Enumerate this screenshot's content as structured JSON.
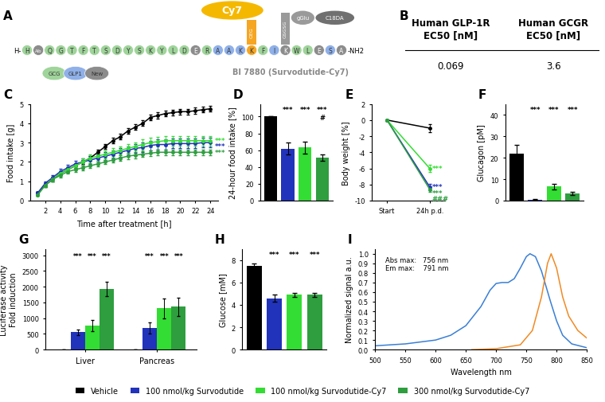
{
  "diagram": {
    "panel": "A",
    "title": "BI 7880 (Survodutide-Cy7)",
    "n_terminus": "H-",
    "c_terminus": "-NH2",
    "groups": [
      {
        "name": "GCG",
        "color": "#9fd49a"
      },
      {
        "name": "GLP1",
        "color": "#8fb0e8"
      },
      {
        "name": "New",
        "color": "#8c8c8c"
      }
    ],
    "residues": [
      {
        "label": "H",
        "group": "GCG"
      },
      {
        "label": "Aib",
        "group": "New"
      },
      {
        "label": "Q",
        "group": "GCG"
      },
      {
        "label": "G",
        "group": "GCG"
      },
      {
        "label": "T",
        "group": "GCG"
      },
      {
        "label": "F",
        "group": "GCG"
      },
      {
        "label": "T",
        "group": "GCG"
      },
      {
        "label": "S",
        "group": "GCG"
      },
      {
        "label": "D",
        "group": "GCG"
      },
      {
        "label": "Y",
        "group": "GCG"
      },
      {
        "label": "S",
        "group": "GCG"
      },
      {
        "label": "K",
        "group": "GCG"
      },
      {
        "label": "Y",
        "group": "GCG"
      },
      {
        "label": "L",
        "group": "GCG"
      },
      {
        "label": "D",
        "group": "GCG"
      },
      {
        "label": "E",
        "group": "New"
      },
      {
        "label": "R",
        "group": "GCG"
      },
      {
        "label": "A",
        "group": "GLP1"
      },
      {
        "label": "A",
        "group": "GLP1"
      },
      {
        "label": "K",
        "group": "GLP1"
      },
      {
        "label": "K",
        "color": "#f5a623",
        "side_chain": {
          "linker": {
            "label": "OEG",
            "color": "#f5a623"
          },
          "payload": [
            {
              "label": "Cy7",
              "color": "#f5b800"
            }
          ]
        }
      },
      {
        "label": "F",
        "group": "GCG"
      },
      {
        "label": "I",
        "group": "GLP1"
      },
      {
        "label": "K",
        "group": "New",
        "side_chain": {
          "linker": {
            "label": "GSGSG",
            "color": "#9a9a9a"
          },
          "payload": [
            {
              "label": "gGlu",
              "color": "#9a9a9a"
            },
            {
              "label": "C18DA",
              "color": "#707070"
            }
          ]
        }
      },
      {
        "label": "W",
        "group": "GCG"
      },
      {
        "label": "L",
        "group": "GCG"
      },
      {
        "label": "E",
        "group": "New"
      },
      {
        "label": "S",
        "group": "GLP1"
      },
      {
        "label": "A",
        "group": "New"
      }
    ]
  },
  "table": {
    "panel": "B",
    "header": [
      "Human GLP-1R\nEC50 [nM]",
      "Human GCGR\nEC50 [nM]"
    ],
    "rows": [
      [
        "0.069",
        "3.6"
      ]
    ]
  },
  "chart_data": [
    {
      "type": "line",
      "panel": "C",
      "xlabel": "Time after treatment [h]",
      "ylabel": "Food intake [g]",
      "marker": "o",
      "legend": "lower center",
      "x": [
        1,
        2,
        3,
        4,
        5,
        6,
        7,
        8,
        9,
        10,
        11,
        12,
        13,
        14,
        15,
        16,
        17,
        18,
        19,
        20,
        21,
        22,
        23,
        24
      ],
      "xlim": [
        0,
        25
      ],
      "xticks": [
        2,
        4,
        6,
        8,
        10,
        12,
        14,
        16,
        18,
        20,
        22,
        24
      ],
      "ylim": [
        0,
        5
      ],
      "yticks": [
        0,
        1,
        2,
        3,
        4,
        5
      ],
      "series": [
        {
          "name": "Vehicle",
          "color": "#000000",
          "values": [
            0.4,
            0.8,
            1.1,
            1.4,
            1.6,
            1.8,
            2.0,
            2.2,
            2.5,
            2.8,
            3.1,
            3.3,
            3.6,
            3.8,
            4.0,
            4.3,
            4.4,
            4.5,
            4.55,
            4.6,
            4.6,
            4.65,
            4.7,
            4.75
          ],
          "errors": [
            0.05,
            0.08,
            0.1,
            0.1,
            0.1,
            0.1,
            0.1,
            0.12,
            0.12,
            0.12,
            0.15,
            0.15,
            0.15,
            0.15,
            0.15,
            0.15,
            0.15,
            0.15,
            0.15,
            0.15,
            0.15,
            0.15,
            0.15,
            0.15
          ]
        },
        {
          "name": "100 nmol/kg Survodutide",
          "color": "#2233bb",
          "marks": [
            "***"
          ],
          "values": [
            0.4,
            0.9,
            1.2,
            1.5,
            1.7,
            1.9,
            2.0,
            2.1,
            2.2,
            2.3,
            2.4,
            2.5,
            2.6,
            2.7,
            2.75,
            2.85,
            2.9,
            2.9,
            2.95,
            2.95,
            2.95,
            2.95,
            3.0,
            3.0
          ],
          "errors": [
            0.05,
            0.1,
            0.12,
            0.15,
            0.15,
            0.15,
            0.2,
            0.2,
            0.2,
            0.2,
            0.2,
            0.22,
            0.22,
            0.22,
            0.25,
            0.25,
            0.25,
            0.25,
            0.25,
            0.25,
            0.25,
            0.25,
            0.25,
            0.25
          ]
        },
        {
          "name": "100 nmol/kg Survodutide-Cy7",
          "color": "#33dd33",
          "marks": [
            "***"
          ],
          "values": [
            0.3,
            0.8,
            1.1,
            1.4,
            1.6,
            1.8,
            2.0,
            2.2,
            2.3,
            2.4,
            2.5,
            2.6,
            2.7,
            2.8,
            2.9,
            3.0,
            3.05,
            3.1,
            3.1,
            3.1,
            3.1,
            3.1,
            3.1,
            3.1
          ],
          "errors": [
            0.05,
            0.1,
            0.12,
            0.15,
            0.15,
            0.15,
            0.2,
            0.2,
            0.2,
            0.2,
            0.2,
            0.22,
            0.22,
            0.22,
            0.25,
            0.25,
            0.25,
            0.25,
            0.25,
            0.25,
            0.25,
            0.25,
            0.25,
            0.25
          ]
        },
        {
          "name": "300 nmol/kg Survodutide-Cy7",
          "color": "#2e9e3f",
          "marks": [
            "***"
          ],
          "values": [
            0.3,
            0.8,
            1.1,
            1.3,
            1.5,
            1.6,
            1.7,
            1.8,
            1.9,
            2.0,
            2.1,
            2.2,
            2.3,
            2.35,
            2.4,
            2.45,
            2.5,
            2.5,
            2.5,
            2.5,
            2.5,
            2.5,
            2.5,
            2.5
          ],
          "errors": [
            0.05,
            0.08,
            0.1,
            0.1,
            0.1,
            0.1,
            0.12,
            0.12,
            0.12,
            0.12,
            0.12,
            0.15,
            0.15,
            0.15,
            0.15,
            0.15,
            0.15,
            0.15,
            0.15,
            0.15,
            0.15,
            0.15,
            0.15,
            0.15
          ]
        }
      ]
    },
    {
      "type": "bar",
      "panel": "D",
      "ylabel": "24-hour food intake [%]",
      "categories": [
        null,
        null,
        null,
        null
      ],
      "values": [
        100,
        62,
        63,
        51
      ],
      "errors": [
        0,
        7,
        7,
        4
      ],
      "colors": [
        "#000000",
        "#2233bb",
        "#33dd33",
        "#2e9e3f"
      ],
      "marks": [
        null,
        [
          "***"
        ],
        [
          "***"
        ],
        [
          "***",
          "#"
        ]
      ],
      "ylim": [
        0,
        115
      ],
      "yticks": [
        0,
        20,
        40,
        60,
        80,
        100
      ]
    },
    {
      "type": "line",
      "panel": "E",
      "ylabel": "Body weight [%]",
      "marker": "o",
      "categories": [
        "Start",
        "24h p.d."
      ],
      "ylim": [
        -10,
        2
      ],
      "yticks": [
        -10,
        -8,
        -6,
        -4,
        -2,
        0,
        2
      ],
      "series": [
        {
          "color": "#000000",
          "values": [
            0,
            -1.0
          ],
          "errors": [
            0,
            0.5
          ]
        },
        {
          "color": "#2233bb",
          "values": [
            0,
            -8.3
          ],
          "errors": [
            0,
            0.4
          ],
          "marks": [
            "***"
          ]
        },
        {
          "color": "#33dd33",
          "values": [
            0,
            -6.0
          ],
          "errors": [
            0,
            0.4
          ],
          "marks": [
            "***"
          ]
        },
        {
          "color": "#2e9e3f",
          "values": [
            0,
            -8.6
          ],
          "errors": [
            0,
            0.3
          ],
          "marks": [
            "***",
            "###"
          ]
        }
      ]
    },
    {
      "type": "bar",
      "panel": "F",
      "ylabel": "Glucagon [pM]",
      "categories": [
        null,
        null,
        null,
        null
      ],
      "values": [
        22,
        0.5,
        6.5,
        3.3
      ],
      "errors": [
        4,
        0.2,
        1.2,
        0.6
      ],
      "colors": [
        "#000000",
        "#2233bb",
        "#33dd33",
        "#2e9e3f"
      ],
      "marks": [
        null,
        [
          "***"
        ],
        [
          "***"
        ],
        [
          "***"
        ]
      ],
      "ylim": [
        0,
        45
      ],
      "yticks": [
        0,
        10,
        20,
        30,
        40
      ]
    },
    {
      "type": "bar",
      "panel": "G",
      "ylabel": "Luciferase activity\nFold induction",
      "categories": [
        "Liver",
        "Pancreas"
      ],
      "ylim": [
        0,
        3200
      ],
      "yticks": [
        0,
        500,
        1000,
        1500,
        2000,
        2500,
        3000
      ],
      "series": [
        {
          "color": "#000000",
          "values": [
            1,
            1
          ],
          "errors": [
            0,
            0
          ]
        },
        {
          "color": "#2233bb",
          "values": [
            550,
            690
          ],
          "errors": [
            80,
            170
          ],
          "marks": [
            [
              "***"
            ],
            [
              "***"
            ]
          ]
        },
        {
          "color": "#33dd33",
          "values": [
            760,
            1310
          ],
          "errors": [
            170,
            320
          ],
          "marks": [
            [
              "***"
            ],
            [
              "***"
            ]
          ]
        },
        {
          "color": "#2e9e3f",
          "values": [
            1930,
            1360
          ],
          "errors": [
            230,
            300
          ],
          "marks": [
            [
              "***"
            ],
            [
              "***"
            ]
          ]
        }
      ]
    },
    {
      "type": "bar",
      "panel": "H",
      "ylabel": "Glucose [mM]",
      "categories": [
        null,
        null,
        null,
        null
      ],
      "values": [
        7.5,
        4.6,
        4.9,
        4.9
      ],
      "errors": [
        0.2,
        0.3,
        0.2,
        0.2
      ],
      "colors": [
        "#000000",
        "#2233bb",
        "#33dd33",
        "#2e9e3f"
      ],
      "marks": [
        null,
        [
          "***"
        ],
        [
          "***"
        ],
        [
          "***"
        ]
      ],
      "ylim": [
        0,
        9
      ],
      "yticks": [
        0,
        2,
        4,
        6,
        8
      ]
    },
    {
      "type": "line",
      "panel": "I",
      "xlabel": "Wavelength nm",
      "ylabel": "Normalized signal a.u.",
      "annotations": [
        "Abs max:   756 nm",
        "Em max:    791 nm"
      ],
      "xlim": [
        500,
        850
      ],
      "xticks": [
        500,
        550,
        600,
        650,
        700,
        750,
        800,
        850
      ],
      "ylim": [
        0,
        1.05
      ],
      "yticks": [
        {
          "value": 0,
          "label": "0.0"
        },
        0.1,
        0.2,
        0.3,
        0.4,
        0.5,
        0.6,
        0.7,
        0.8,
        0.9,
        {
          "value": 1,
          "label": "1.0"
        }
      ],
      "series": [
        {
          "color": "#3a7fd5",
          "x": [
            500,
            550,
            600,
            625,
            650,
            675,
            690,
            700,
            710,
            720,
            730,
            740,
            750,
            756,
            765,
            775,
            790,
            800,
            810,
            825,
            850
          ],
          "values": [
            0.04,
            0.06,
            0.1,
            0.15,
            0.25,
            0.45,
            0.62,
            0.69,
            0.7,
            0.7,
            0.74,
            0.85,
            0.97,
            1.0,
            0.97,
            0.82,
            0.5,
            0.3,
            0.15,
            0.06,
            0.02
          ]
        },
        {
          "color": "#f08a24",
          "x": [
            660,
            700,
            740,
            760,
            775,
            785,
            791,
            800,
            810,
            820,
            835,
            850
          ],
          "values": [
            0,
            0.01,
            0.05,
            0.2,
            0.55,
            0.9,
            1.0,
            0.85,
            0.55,
            0.35,
            0.2,
            0.12
          ]
        }
      ]
    }
  ]
}
